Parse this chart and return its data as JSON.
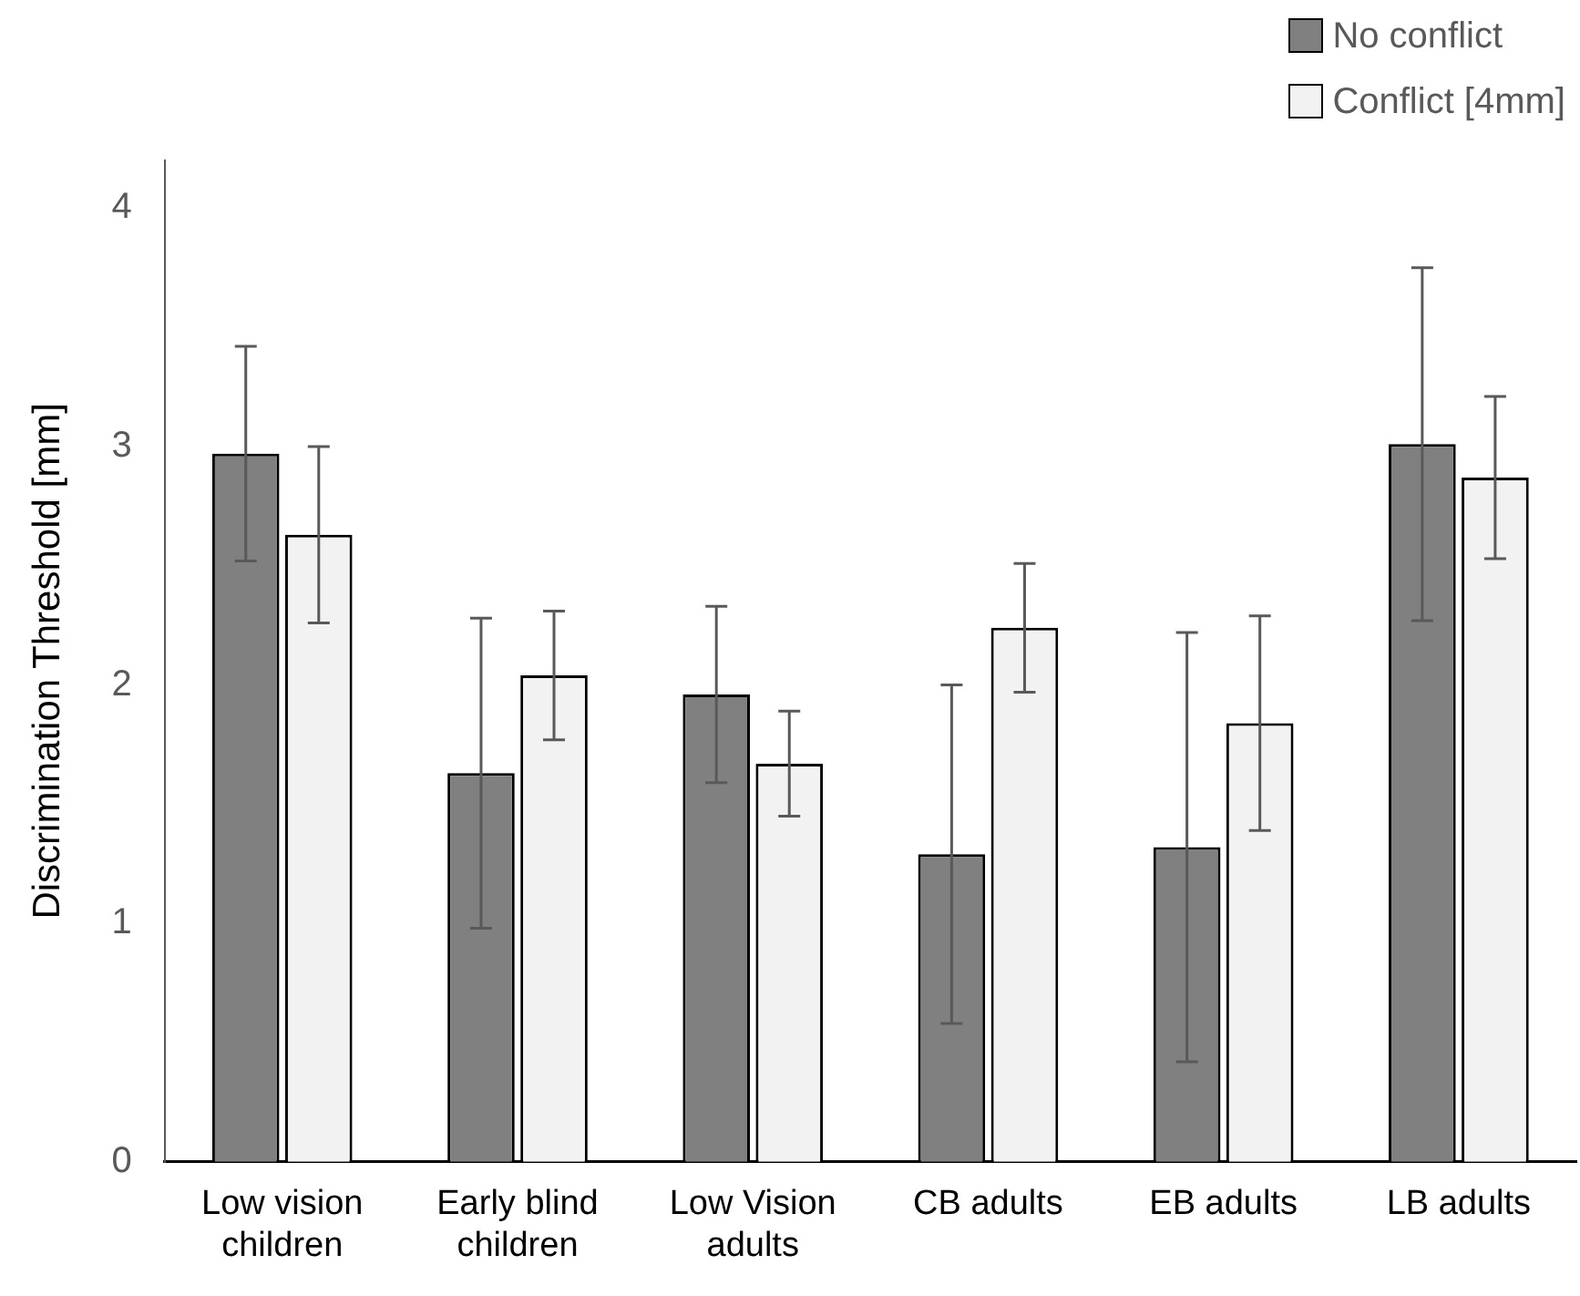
{
  "chart_data": {
    "type": "bar",
    "ylabel": "Discrimination Threshold [mm]",
    "categories": [
      "Low vision children",
      "Early blind children",
      "Low Vision adults",
      "CB adults",
      "EB adults",
      "LB adults"
    ],
    "series": [
      {
        "name": "No conflict",
        "color": "#808080",
        "values": [
          2.97,
          1.63,
          1.96,
          1.29,
          1.32,
          3.01
        ],
        "errors": [
          0.45,
          0.65,
          0.37,
          0.71,
          0.9,
          0.74
        ]
      },
      {
        "name": "Conflict [4mm]",
        "color": "#f2f2f2",
        "values": [
          2.63,
          2.04,
          1.67,
          2.24,
          1.84,
          2.87
        ],
        "errors": [
          0.37,
          0.27,
          0.22,
          0.27,
          0.45,
          0.34
        ]
      }
    ],
    "ylim": [
      0,
      4.2
    ],
    "yticks": [
      0,
      1,
      2,
      3,
      4
    ],
    "grid": false,
    "legend": "top right"
  }
}
